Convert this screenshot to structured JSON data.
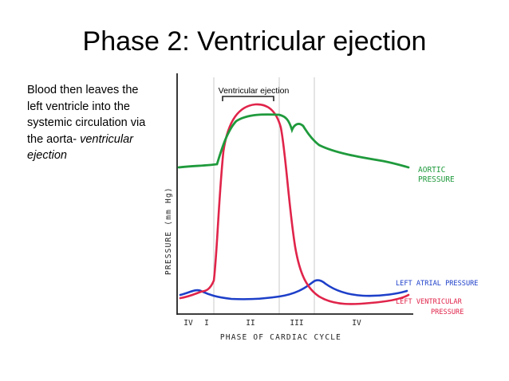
{
  "slide": {
    "title": "Phase 2: Ventricular ejection",
    "body_plain": "Blood then leaves the left ventricle into the systemic circulation via the aorta- ",
    "body_emphasis": "ventricular ejection"
  },
  "figure": {
    "bracket_label": "Ventricular ejection",
    "y_axis_label": "PRESSURE (mm Hg)",
    "x_axis_label": "PHASE OF CARDIAC CYCLE",
    "phase_labels": [
      "IV",
      "I",
      "II",
      "III",
      "IV"
    ],
    "curves": [
      {
        "name": "AORTIC PRESSURE",
        "label_lines": [
          "AORTIC",
          "PRESSURE"
        ],
        "color": "#1f9a3c"
      },
      {
        "name": "LEFT ATRIAL PRESSURE",
        "label_lines": [
          "LEFT ATRIAL PRESSURE"
        ],
        "color": "#1d3fc9"
      },
      {
        "name": "LEFT VENTRICULAR PRESSURE",
        "label_lines": [
          "LEFT VENTRICULAR",
          "PRESSURE"
        ],
        "color": "#e0244a"
      }
    ]
  }
}
